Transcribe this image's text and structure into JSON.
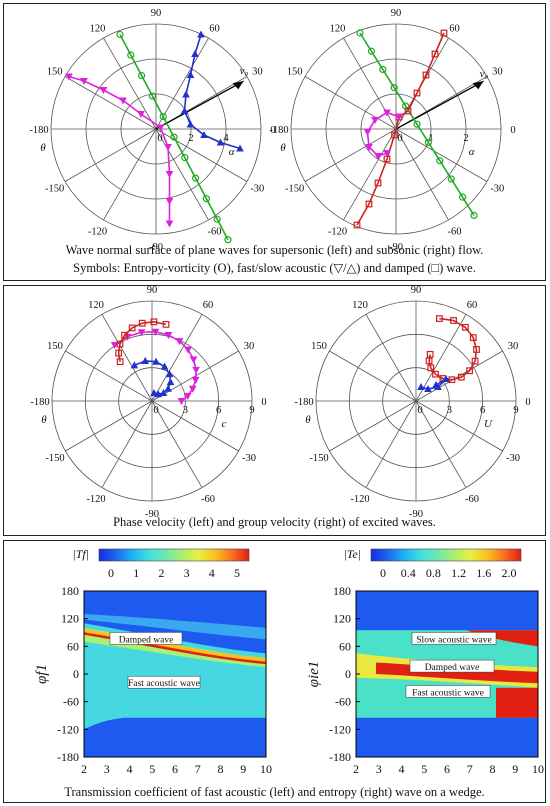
{
  "panel1": {
    "caption1": "Wave normal surface of plane waves for supersonic (left) and subsonic (right) flow.",
    "caption2": "Symbols: Entropy-vorticity (O), fast/slow acoustic (▽/△) and damped (□) wave.",
    "left": {
      "angle_labels": [
        "90",
        "60",
        "30",
        "0",
        "-30",
        "-60",
        "-90",
        "-120",
        "-150",
        "-180",
        "150",
        "120"
      ],
      "radial_ticks": [
        "0",
        "2",
        "4"
      ],
      "radial_label": "α",
      "theta_label": "θ",
      "vector_label": "v₀"
    },
    "right": {
      "angle_labels": [
        "90",
        "60",
        "30",
        "0",
        "-30",
        "-60",
        "-90",
        "-120",
        "-150",
        "-180",
        "150",
        "120"
      ],
      "radial_ticks": [
        "0",
        "1",
        "2"
      ],
      "radial_label": "α",
      "theta_label": "θ",
      "vector_label": "v₀"
    }
  },
  "panel2": {
    "caption": "Phase velocity (left) and group velocity (right) of excited waves.",
    "left": {
      "angle_labels": [
        "90",
        "60",
        "30",
        "0",
        "-30",
        "-60",
        "-90",
        "-120",
        "-150",
        "-180",
        "150",
        "120"
      ],
      "radial_ticks": [
        "0",
        "3",
        "6",
        "9"
      ],
      "radial_label": "c",
      "theta_label": "θ"
    },
    "right": {
      "angle_labels": [
        "90",
        "60",
        "30",
        "0",
        "-30",
        "-60",
        "-90",
        "-120",
        "-150",
        "-180",
        "150",
        "120"
      ],
      "radial_ticks": [
        "0",
        "3",
        "6",
        "9"
      ],
      "radial_label": "U",
      "theta_label": "θ"
    }
  },
  "panel3": {
    "caption": "Transmission coefficient of fast acoustic (left) and entropy (right) wave on a wedge.",
    "left": {
      "colorbar_label": "|Tf|",
      "colorbar_ticks": [
        "0",
        "1",
        "2",
        "3",
        "4",
        "5"
      ],
      "ylabel": "φf1",
      "yticks": [
        "180",
        "120",
        "60",
        "0",
        "-60",
        "-120",
        "-180"
      ],
      "xticks": [
        "2",
        "3",
        "4",
        "5",
        "6",
        "7",
        "8",
        "9",
        "10"
      ],
      "annotations": [
        "Damped wave",
        "Fast acoustic wave"
      ]
    },
    "right": {
      "colorbar_label": "|Te|",
      "colorbar_ticks": [
        "0",
        "0.4",
        "0.8",
        "1.2",
        "1.6",
        "2.0"
      ],
      "ylabel": "φie1",
      "yticks": [
        "180",
        "120",
        "60",
        "0",
        "-60",
        "-120",
        "-180"
      ],
      "xticks": [
        "2",
        "3",
        "4",
        "5",
        "6",
        "7",
        "8",
        "9",
        "10"
      ],
      "annotations": [
        "Slow acoustic wave",
        "Damped wave",
        "Fast acoustic wave"
      ]
    }
  },
  "chart_data": [
    {
      "type": "line",
      "subplot": "wave-normal-supersonic",
      "series": [
        {
          "name": "Entropy-vorticity",
          "color": "#22aa22",
          "marker": "circle",
          "x": [
            -2,
            -1,
            0,
            1,
            2,
            3,
            4
          ],
          "y": [
            6,
            4,
            2,
            0,
            -2,
            -4,
            -6
          ]
        },
        {
          "name": "Fast acoustic",
          "color": "#dd22dd",
          "marker": "triangle-down",
          "x": [
            -5,
            -3,
            -1.5,
            0.5,
            0.8,
            0.8
          ],
          "y": [
            3.2,
            2.5,
            1.5,
            0,
            -3,
            -5.5
          ]
        },
        {
          "name": "Slow acoustic",
          "color": "#2233cc",
          "marker": "triangle-up",
          "x": [
            2.5,
            2.2,
            1.8,
            2.5,
            4.5
          ],
          "y": [
            5.5,
            3,
            1.5,
            -0.5,
            -1.5
          ]
        }
      ]
    },
    {
      "type": "line",
      "subplot": "wave-normal-subsonic",
      "series": [
        {
          "name": "Entropy-vorticity",
          "color": "#22aa22",
          "marker": "circle",
          "x": [
            -2,
            -1,
            0,
            1,
            2,
            3
          ],
          "y": [
            4,
            2.7,
            1.3,
            0,
            -1.3,
            -2.7
          ]
        },
        {
          "name": "Damped",
          "color": "#cc2222",
          "marker": "square",
          "x": [
            -1.5,
            -0.5,
            0,
            0.4,
            1.2,
            2
          ],
          "y": [
            -3,
            -1.5,
            0,
            0.5,
            2,
            3
          ]
        },
        {
          "name": "Fast acoustic",
          "color": "#dd22dd",
          "marker": "triangle-down",
          "x": [
            -0.8,
            -0.5,
            0,
            0.3
          ],
          "y": [
            -0.6,
            0.3,
            0.5,
            0.2
          ]
        }
      ]
    },
    {
      "type": "line",
      "subplot": "phase-velocity",
      "series": [
        {
          "name": "Fast acoustic",
          "color": "#dd22dd",
          "marker": "triangle-down"
        },
        {
          "name": "Damped",
          "color": "#cc2222",
          "marker": "square"
        },
        {
          "name": "Slow acoustic",
          "color": "#2233cc",
          "marker": "triangle-up"
        }
      ]
    },
    {
      "type": "line",
      "subplot": "group-velocity",
      "series": [
        {
          "name": "Damped",
          "color": "#cc2222",
          "marker": "square"
        },
        {
          "name": "Slow acoustic",
          "color": "#2233cc",
          "marker": "triangle-up"
        }
      ]
    },
    {
      "type": "heatmap",
      "subplot": "transmission-fast",
      "x_range": [
        2,
        10
      ],
      "y_range": [
        -180,
        180
      ],
      "color_range": [
        0,
        5
      ]
    },
    {
      "type": "heatmap",
      "subplot": "transmission-entropy",
      "x_range": [
        2,
        10
      ],
      "y_range": [
        -180,
        180
      ],
      "color_range": [
        0,
        2
      ]
    }
  ]
}
